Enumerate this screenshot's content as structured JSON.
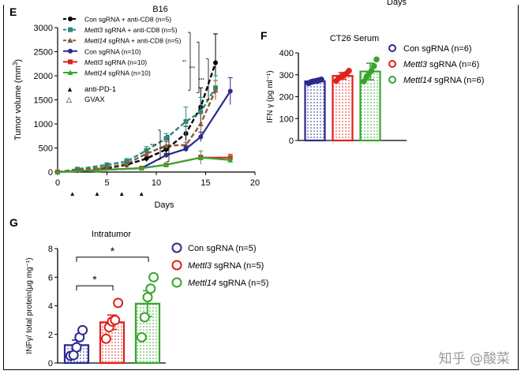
{
  "chart_data": [
    {
      "panel": "E",
      "type": "line",
      "title": "B16",
      "xlabel": "Days",
      "ylabel": "Tumor volume (mm3)",
      "xlim": [
        0,
        20
      ],
      "ylim": [
        0,
        3000
      ],
      "xticks": [
        0,
        5,
        10,
        15,
        20
      ],
      "yticks": [
        0,
        500,
        1000,
        1500,
        2000,
        2500,
        3000
      ],
      "series": [
        {
          "name": "Con sgRNA + anti-CD8 (n=5)",
          "color": "#000000",
          "dashed": true,
          "marker": "circle",
          "x": [
            0,
            2,
            5,
            7,
            9,
            11,
            13,
            14.5,
            16
          ],
          "y": [
            0,
            30,
            80,
            150,
            280,
            470,
            800,
            1350,
            2270
          ],
          "err": [
            0,
            10,
            20,
            40,
            60,
            80,
            150,
            400,
            600
          ]
        },
        {
          "name": "Mettl3 sgRNA + anti-CD8 (n=5)",
          "color": "#2a8c82",
          "dashed": true,
          "marker": "square",
          "x": [
            0,
            2,
            5,
            7,
            9,
            11,
            13,
            14.5,
            16
          ],
          "y": [
            0,
            60,
            150,
            220,
            450,
            700,
            1050,
            1250,
            1750
          ],
          "err": [
            0,
            20,
            40,
            60,
            80,
            100,
            300,
            300,
            250
          ]
        },
        {
          "name": "Mettl14 sgRNA + anti-CD8 (n=5)",
          "color": "#8b5a3c",
          "dashed": true,
          "marker": "triangle",
          "x": [
            0,
            2,
            5,
            7,
            9,
            11,
            13,
            14.5,
            16
          ],
          "y": [
            0,
            40,
            100,
            170,
            380,
            550,
            560,
            1000,
            1700
          ],
          "err": [
            0,
            10,
            20,
            30,
            60,
            80,
            60,
            250,
            200
          ]
        },
        {
          "name": "Con sgRNA (n=10)",
          "color": "#2b2a8f",
          "dashed": false,
          "marker": "circle",
          "x": [
            0,
            4,
            8.5,
            11,
            13,
            14.5,
            17.5
          ],
          "y": [
            0,
            40,
            80,
            350,
            480,
            730,
            1680
          ],
          "err": [
            0,
            10,
            20,
            40,
            60,
            100,
            280
          ]
        },
        {
          "name": "Mettl3 sgRNA (n=10)",
          "color": "#e0201b",
          "dashed": false,
          "marker": "square",
          "x": [
            0,
            4,
            8.5,
            11,
            14.5,
            17.5
          ],
          "y": [
            0,
            40,
            80,
            150,
            300,
            300
          ],
          "err": [
            0,
            10,
            20,
            30,
            50,
            70
          ]
        },
        {
          "name": "Mettl14 sgRNA (n=10)",
          "color": "#35a62d",
          "dashed": false,
          "marker": "triangle",
          "x": [
            0,
            4,
            8.5,
            11,
            14.5,
            17.5
          ],
          "y": [
            0,
            40,
            80,
            150,
            300,
            250
          ],
          "err": [
            0,
            10,
            20,
            30,
            140,
            60
          ]
        }
      ],
      "treatment_legend": [
        {
          "symbol": "▲",
          "label": "anti-PD-1"
        },
        {
          "symbol": "△",
          "label": "GVAX"
        }
      ],
      "treatment_days": [
        1.5,
        4,
        6.5,
        8.5
      ],
      "significance": [
        "**",
        "***",
        "***",
        "***",
        "***"
      ]
    },
    {
      "panel": "F",
      "type": "bar",
      "title": "CT26 Serum",
      "ylabel": "IFN γ (pg ml⁻¹)",
      "ylim": [
        0,
        400
      ],
      "yticks": [
        0,
        100,
        200,
        300,
        400
      ],
      "categories": [
        "Con sgRNA (n=6)",
        "Mettl3 sgRNA (n=6)",
        "Mettl14 sgRNA (n=6)"
      ],
      "values": [
        270,
        295,
        315
      ],
      "errors": [
        8,
        15,
        38
      ],
      "colors": [
        "#2b2a8f",
        "#e0201b",
        "#35a62d"
      ],
      "points": [
        [
          262,
          267,
          270,
          272,
          275,
          278
        ],
        [
          272,
          285,
          292,
          298,
          305,
          318
        ],
        [
          270,
          290,
          305,
          318,
          340,
          370
        ]
      ]
    },
    {
      "panel": "G",
      "type": "bar",
      "title": "Intratumor",
      "ylabel": "INFγ/ total protein(μg mg⁻¹)",
      "ylim": [
        0,
        8
      ],
      "yticks": [
        0,
        2,
        4,
        6,
        8
      ],
      "categories": [
        "Con sgRNA (n=5)",
        "Mettl3 sgRNA (n=5)",
        "Mettl14 sgRNA (n=5)"
      ],
      "values": [
        1.25,
        2.85,
        4.15
      ],
      "errors": [
        0.35,
        0.5,
        0.9
      ],
      "colors": [
        "#2b2a8f",
        "#e0201b",
        "#35a62d"
      ],
      "points": [
        [
          0.5,
          0.55,
          1.1,
          1.8,
          2.3
        ],
        [
          1.7,
          2.5,
          2.9,
          3.0,
          4.2
        ],
        [
          1.8,
          3.2,
          4.6,
          5.2,
          6.0
        ]
      ],
      "significance": [
        "*",
        "*"
      ]
    }
  ],
  "panel_e_label": "E",
  "panel_f_label": "F",
  "panel_g_label": "G",
  "top_cut_text": "Days",
  "watermark": "知乎 @酸菜"
}
